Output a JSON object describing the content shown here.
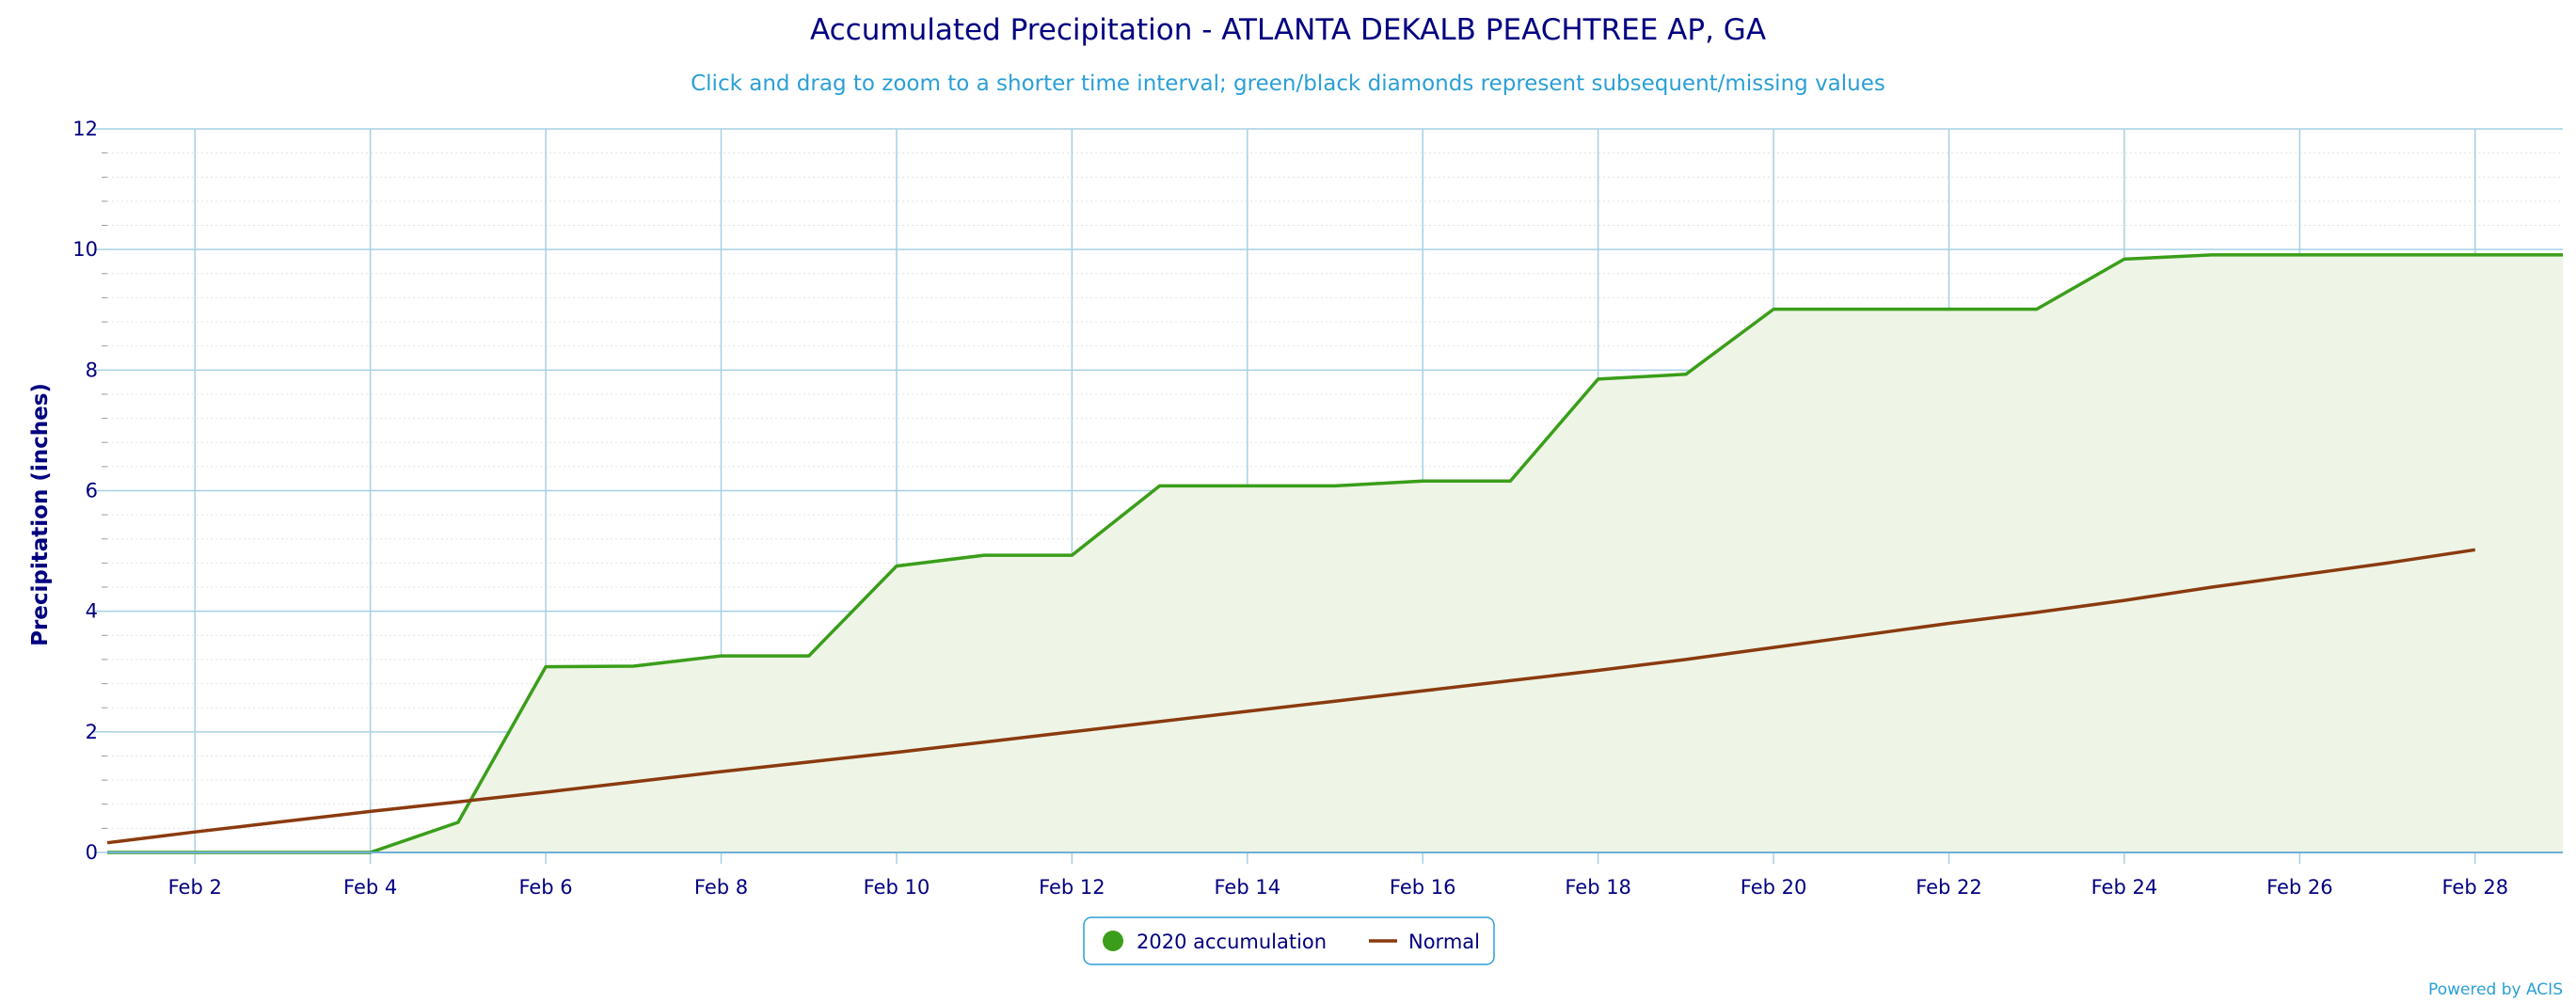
{
  "chart_data": {
    "type": "area",
    "title": "Accumulated Precipitation - ATLANTA DEKALB PEACHTREE AP, GA",
    "subtitle": "Click and drag to zoom to a shorter time interval; green/black diamonds represent subsequent/missing values",
    "ylabel": "Precipitation (inches)",
    "xlabel": "",
    "xlim": [
      1,
      29
    ],
    "ylim": [
      0,
      12
    ],
    "yticks": [
      0,
      2,
      4,
      6,
      8,
      10,
      12
    ],
    "xticks": [
      {
        "day": 2,
        "label": "Feb 2"
      },
      {
        "day": 4,
        "label": "Feb 4"
      },
      {
        "day": 6,
        "label": "Feb 6"
      },
      {
        "day": 8,
        "label": "Feb 8"
      },
      {
        "day": 10,
        "label": "Feb 10"
      },
      {
        "day": 12,
        "label": "Feb 12"
      },
      {
        "day": 14,
        "label": "Feb 14"
      },
      {
        "day": 16,
        "label": "Feb 16"
      },
      {
        "day": 18,
        "label": "Feb 18"
      },
      {
        "day": 20,
        "label": "Feb 20"
      },
      {
        "day": 22,
        "label": "Feb 22"
      },
      {
        "day": 24,
        "label": "Feb 24"
      },
      {
        "day": 26,
        "label": "Feb 26"
      },
      {
        "day": 28,
        "label": "Feb 28"
      }
    ],
    "grid": true,
    "legend_position": "bottom-center",
    "series": [
      {
        "name": "2020 accumulation",
        "color": "#3a9e1a",
        "fill": "#eef5e7",
        "x": [
          1,
          2,
          3,
          4,
          5,
          6,
          7,
          8,
          9,
          10,
          11,
          12,
          13,
          14,
          15,
          16,
          17,
          18,
          19,
          20,
          21,
          22,
          23,
          24,
          25,
          26,
          27,
          28,
          29
        ],
        "values": [
          0.0,
          0.0,
          0.0,
          0.0,
          0.5,
          3.08,
          3.09,
          3.26,
          3.26,
          4.75,
          4.93,
          4.93,
          6.08,
          6.08,
          6.08,
          6.16,
          6.16,
          7.85,
          7.93,
          9.01,
          9.01,
          9.01,
          9.01,
          9.84,
          9.91,
          9.91,
          9.91,
          9.91,
          9.91
        ]
      },
      {
        "name": "Normal",
        "color": "#8b3a0f",
        "x": [
          1,
          2,
          3,
          4,
          5,
          6,
          7,
          8,
          9,
          10,
          11,
          12,
          13,
          14,
          15,
          16,
          17,
          18,
          19,
          20,
          21,
          22,
          23,
          24,
          25,
          26,
          27,
          28
        ],
        "values": [
          0.16,
          0.34,
          0.51,
          0.68,
          0.84,
          1.0,
          1.17,
          1.34,
          1.5,
          1.66,
          1.83,
          2.0,
          2.17,
          2.34,
          2.51,
          2.68,
          2.85,
          3.02,
          3.2,
          3.4,
          3.6,
          3.8,
          3.98,
          4.18,
          4.4,
          4.6,
          4.8,
          5.02
        ]
      }
    ],
    "credits": "Powered by ACIS"
  }
}
